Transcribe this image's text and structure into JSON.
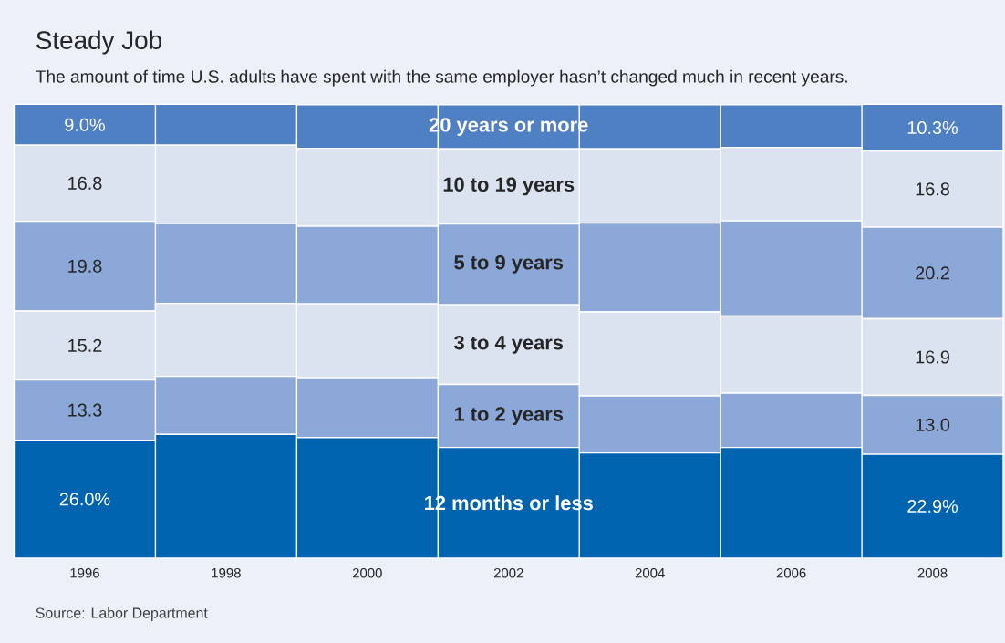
{
  "chart_data": {
    "type": "bar",
    "stacked": true,
    "title": "Steady Job",
    "subtitle": "The amount of time U.S. adults have spent with the same employer hasn’t changed much in recent years.",
    "categories": [
      "1996",
      "1998",
      "2000",
      "2002",
      "2004",
      "2006",
      "2008"
    ],
    "series": [
      {
        "name": "12 months or less",
        "color": "#0063b0",
        "values": [
          26.0,
          27.3,
          26.6,
          24.4,
          23.2,
          24.4,
          22.9
        ],
        "value_labels": [
          "26.0%",
          null,
          null,
          null,
          null,
          null,
          "22.9%"
        ]
      },
      {
        "name": "1 to 2 years",
        "color": "#8ca8d8",
        "values": [
          13.3,
          12.8,
          13.2,
          13.9,
          12.6,
          12.0,
          13.0
        ],
        "value_labels": [
          "13.3",
          null,
          null,
          null,
          null,
          null,
          "13.0"
        ]
      },
      {
        "name": "3 to 4 years",
        "color": "#dbe3f1",
        "values": [
          15.2,
          16.1,
          16.3,
          17.6,
          18.5,
          17.0,
          16.9
        ],
        "value_labels": [
          "15.2",
          null,
          null,
          null,
          null,
          null,
          "16.9"
        ]
      },
      {
        "name": "5 to 9 years",
        "color": "#8ca8d8",
        "values": [
          19.8,
          17.6,
          17.1,
          17.8,
          19.6,
          21.0,
          20.2
        ],
        "value_labels": [
          "19.8",
          null,
          null,
          null,
          null,
          null,
          "20.2"
        ]
      },
      {
        "name": "10 to 19 years",
        "color": "#dbe3f1",
        "values": [
          16.8,
          17.3,
          17.2,
          16.6,
          16.4,
          16.2,
          16.8
        ],
        "value_labels": [
          "16.8",
          null,
          null,
          null,
          null,
          null,
          "16.8"
        ]
      },
      {
        "name": "20 years or more",
        "color": "#4f80c4",
        "values": [
          9.0,
          9.0,
          9.6,
          9.7,
          9.7,
          9.4,
          10.3
        ],
        "value_labels": [
          "9.0%",
          null,
          null,
          null,
          null,
          null,
          "10.3%"
        ]
      }
    ],
    "tick_labels": "x",
    "annotations": [
      "Source: Labor Department"
    ]
  }
}
